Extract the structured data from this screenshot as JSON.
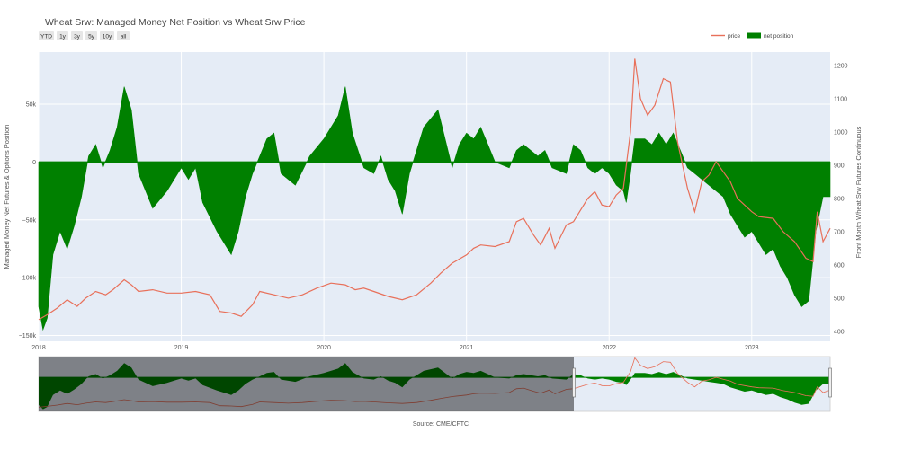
{
  "chart_data": {
    "type": "area",
    "title": "Wheat Srw: Managed Money Net Position vs Wheat Srw Price",
    "ylabel": "Managed Money Net Futures & Options Position",
    "y2label": "Front Month Wheat Srw Futures Continuous",
    "source": "Source: CME/CFTC",
    "range_buttons": [
      "YTD",
      "1y",
      "3y",
      "5y",
      "10y",
      "all"
    ],
    "legend_position": "top-right",
    "grid": true,
    "range_slider": true,
    "xlim": [
      2018.0,
      2023.55
    ],
    "ylim": [
      -155000,
      95000
    ],
    "y2lim": [
      370,
      1240
    ],
    "x_ticks": [
      {
        "label": "2018",
        "value": 2018
      },
      {
        "label": "2019",
        "value": 2019
      },
      {
        "label": "2020",
        "value": 2020
      },
      {
        "label": "2021",
        "value": 2021
      },
      {
        "label": "2022",
        "value": 2022
      },
      {
        "label": "2023",
        "value": 2023
      }
    ],
    "y_ticks": [
      {
        "label": "50k",
        "value": 50000
      },
      {
        "label": "0",
        "value": 0
      },
      {
        "label": "−50k",
        "value": -50000
      },
      {
        "label": "−100k",
        "value": -100000
      },
      {
        "label": "−150k",
        "value": -150000
      }
    ],
    "y2_ticks": [
      {
        "label": "400",
        "value": 400
      },
      {
        "label": "500",
        "value": 500
      },
      {
        "label": "600",
        "value": 600
      },
      {
        "label": "700",
        "value": 700
      },
      {
        "label": "800",
        "value": 800
      },
      {
        "label": "900",
        "value": 900
      },
      {
        "label": "1000",
        "value": 1000
      },
      {
        "label": "1100",
        "value": 1100
      },
      {
        "label": "1200",
        "value": 1200
      }
    ],
    "series": [
      {
        "name": "price",
        "type": "line",
        "axis": "right",
        "color": "#e8705a",
        "points": [
          [
            2018.0,
            435
          ],
          [
            2018.06,
            450
          ],
          [
            2018.13,
            470
          ],
          [
            2018.2,
            495
          ],
          [
            2018.27,
            475
          ],
          [
            2018.33,
            500
          ],
          [
            2018.4,
            520
          ],
          [
            2018.47,
            510
          ],
          [
            2018.52,
            525
          ],
          [
            2018.6,
            555
          ],
          [
            2018.65,
            540
          ],
          [
            2018.7,
            520
          ],
          [
            2018.8,
            525
          ],
          [
            2018.9,
            515
          ],
          [
            2019.0,
            515
          ],
          [
            2019.1,
            520
          ],
          [
            2019.2,
            510
          ],
          [
            2019.27,
            460
          ],
          [
            2019.35,
            455
          ],
          [
            2019.42,
            445
          ],
          [
            2019.5,
            480
          ],
          [
            2019.55,
            520
          ],
          [
            2019.65,
            510
          ],
          [
            2019.75,
            500
          ],
          [
            2019.85,
            510
          ],
          [
            2019.95,
            530
          ],
          [
            2020.05,
            545
          ],
          [
            2020.15,
            540
          ],
          [
            2020.22,
            525
          ],
          [
            2020.28,
            530
          ],
          [
            2020.35,
            520
          ],
          [
            2020.45,
            505
          ],
          [
            2020.55,
            495
          ],
          [
            2020.65,
            510
          ],
          [
            2020.75,
            545
          ],
          [
            2020.82,
            575
          ],
          [
            2020.9,
            605
          ],
          [
            2021.0,
            630
          ],
          [
            2021.05,
            650
          ],
          [
            2021.1,
            660
          ],
          [
            2021.2,
            655
          ],
          [
            2021.3,
            670
          ],
          [
            2021.35,
            730
          ],
          [
            2021.4,
            740
          ],
          [
            2021.47,
            690
          ],
          [
            2021.52,
            660
          ],
          [
            2021.58,
            710
          ],
          [
            2021.62,
            650
          ],
          [
            2021.7,
            720
          ],
          [
            2021.75,
            730
          ],
          [
            2021.85,
            800
          ],
          [
            2021.9,
            820
          ],
          [
            2021.95,
            780
          ],
          [
            2022.0,
            775
          ],
          [
            2022.05,
            810
          ],
          [
            2022.1,
            830
          ],
          [
            2022.15,
            1000
          ],
          [
            2022.18,
            1220
          ],
          [
            2022.22,
            1100
          ],
          [
            2022.27,
            1050
          ],
          [
            2022.32,
            1080
          ],
          [
            2022.38,
            1160
          ],
          [
            2022.43,
            1150
          ],
          [
            2022.48,
            970
          ],
          [
            2022.55,
            830
          ],
          [
            2022.6,
            760
          ],
          [
            2022.65,
            850
          ],
          [
            2022.7,
            870
          ],
          [
            2022.75,
            910
          ],
          [
            2022.8,
            880
          ],
          [
            2022.85,
            850
          ],
          [
            2022.9,
            800
          ],
          [
            2022.95,
            780
          ],
          [
            2023.0,
            760
          ],
          [
            2023.05,
            745
          ],
          [
            2023.15,
            740
          ],
          [
            2023.22,
            700
          ],
          [
            2023.3,
            670
          ],
          [
            2023.38,
            620
          ],
          [
            2023.43,
            610
          ],
          [
            2023.46,
            760
          ],
          [
            2023.5,
            670
          ],
          [
            2023.55,
            710
          ]
        ]
      },
      {
        "name": "net position",
        "type": "area",
        "axis": "left",
        "color": "#008000",
        "points": [
          [
            2018.0,
            -125000
          ],
          [
            2018.03,
            -145000
          ],
          [
            2018.06,
            -135000
          ],
          [
            2018.1,
            -80000
          ],
          [
            2018.15,
            -60000
          ],
          [
            2018.2,
            -75000
          ],
          [
            2018.25,
            -55000
          ],
          [
            2018.3,
            -30000
          ],
          [
            2018.35,
            5000
          ],
          [
            2018.4,
            15000
          ],
          [
            2018.45,
            -5000
          ],
          [
            2018.5,
            10000
          ],
          [
            2018.55,
            30000
          ],
          [
            2018.6,
            65000
          ],
          [
            2018.65,
            45000
          ],
          [
            2018.7,
            -10000
          ],
          [
            2018.8,
            -40000
          ],
          [
            2018.9,
            -25000
          ],
          [
            2018.95,
            -15000
          ],
          [
            2019.0,
            -5000
          ],
          [
            2019.05,
            -15000
          ],
          [
            2019.1,
            -5000
          ],
          [
            2019.15,
            -35000
          ],
          [
            2019.25,
            -60000
          ],
          [
            2019.35,
            -80000
          ],
          [
            2019.4,
            -60000
          ],
          [
            2019.45,
            -30000
          ],
          [
            2019.5,
            -10000
          ],
          [
            2019.55,
            5000
          ],
          [
            2019.6,
            20000
          ],
          [
            2019.65,
            25000
          ],
          [
            2019.7,
            -10000
          ],
          [
            2019.8,
            -20000
          ],
          [
            2019.9,
            5000
          ],
          [
            2020.0,
            20000
          ],
          [
            2020.1,
            40000
          ],
          [
            2020.15,
            65000
          ],
          [
            2020.2,
            25000
          ],
          [
            2020.28,
            -5000
          ],
          [
            2020.35,
            -10000
          ],
          [
            2020.4,
            5000
          ],
          [
            2020.45,
            -15000
          ],
          [
            2020.5,
            -25000
          ],
          [
            2020.55,
            -45000
          ],
          [
            2020.6,
            -10000
          ],
          [
            2020.7,
            30000
          ],
          [
            2020.8,
            45000
          ],
          [
            2020.85,
            20000
          ],
          [
            2020.9,
            -5000
          ],
          [
            2020.95,
            15000
          ],
          [
            2021.0,
            25000
          ],
          [
            2021.05,
            20000
          ],
          [
            2021.1,
            30000
          ],
          [
            2021.15,
            15000
          ],
          [
            2021.2,
            0
          ],
          [
            2021.3,
            -5000
          ],
          [
            2021.35,
            10000
          ],
          [
            2021.4,
            15000
          ],
          [
            2021.5,
            5000
          ],
          [
            2021.55,
            10000
          ],
          [
            2021.6,
            -5000
          ],
          [
            2021.7,
            -10000
          ],
          [
            2021.75,
            15000
          ],
          [
            2021.8,
            10000
          ],
          [
            2021.85,
            -5000
          ],
          [
            2021.9,
            -10000
          ],
          [
            2021.95,
            -5000
          ],
          [
            2022.0,
            -10000
          ],
          [
            2022.05,
            -20000
          ],
          [
            2022.1,
            -25000
          ],
          [
            2022.12,
            -35000
          ],
          [
            2022.15,
            -10000
          ],
          [
            2022.18,
            20000
          ],
          [
            2022.25,
            20000
          ],
          [
            2022.3,
            15000
          ],
          [
            2022.35,
            25000
          ],
          [
            2022.4,
            15000
          ],
          [
            2022.45,
            25000
          ],
          [
            2022.5,
            10000
          ],
          [
            2022.55,
            -5000
          ],
          [
            2022.6,
            -10000
          ],
          [
            2022.65,
            -15000
          ],
          [
            2022.7,
            -20000
          ],
          [
            2022.75,
            -25000
          ],
          [
            2022.8,
            -30000
          ],
          [
            2022.85,
            -45000
          ],
          [
            2022.9,
            -55000
          ],
          [
            2022.95,
            -65000
          ],
          [
            2023.0,
            -60000
          ],
          [
            2023.05,
            -70000
          ],
          [
            2023.1,
            -80000
          ],
          [
            2023.15,
            -75000
          ],
          [
            2023.2,
            -90000
          ],
          [
            2023.25,
            -100000
          ],
          [
            2023.3,
            -115000
          ],
          [
            2023.35,
            -125000
          ],
          [
            2023.4,
            -120000
          ],
          [
            2023.45,
            -60000
          ],
          [
            2023.5,
            -30000
          ],
          [
            2023.55,
            -30000
          ]
        ]
      }
    ]
  }
}
